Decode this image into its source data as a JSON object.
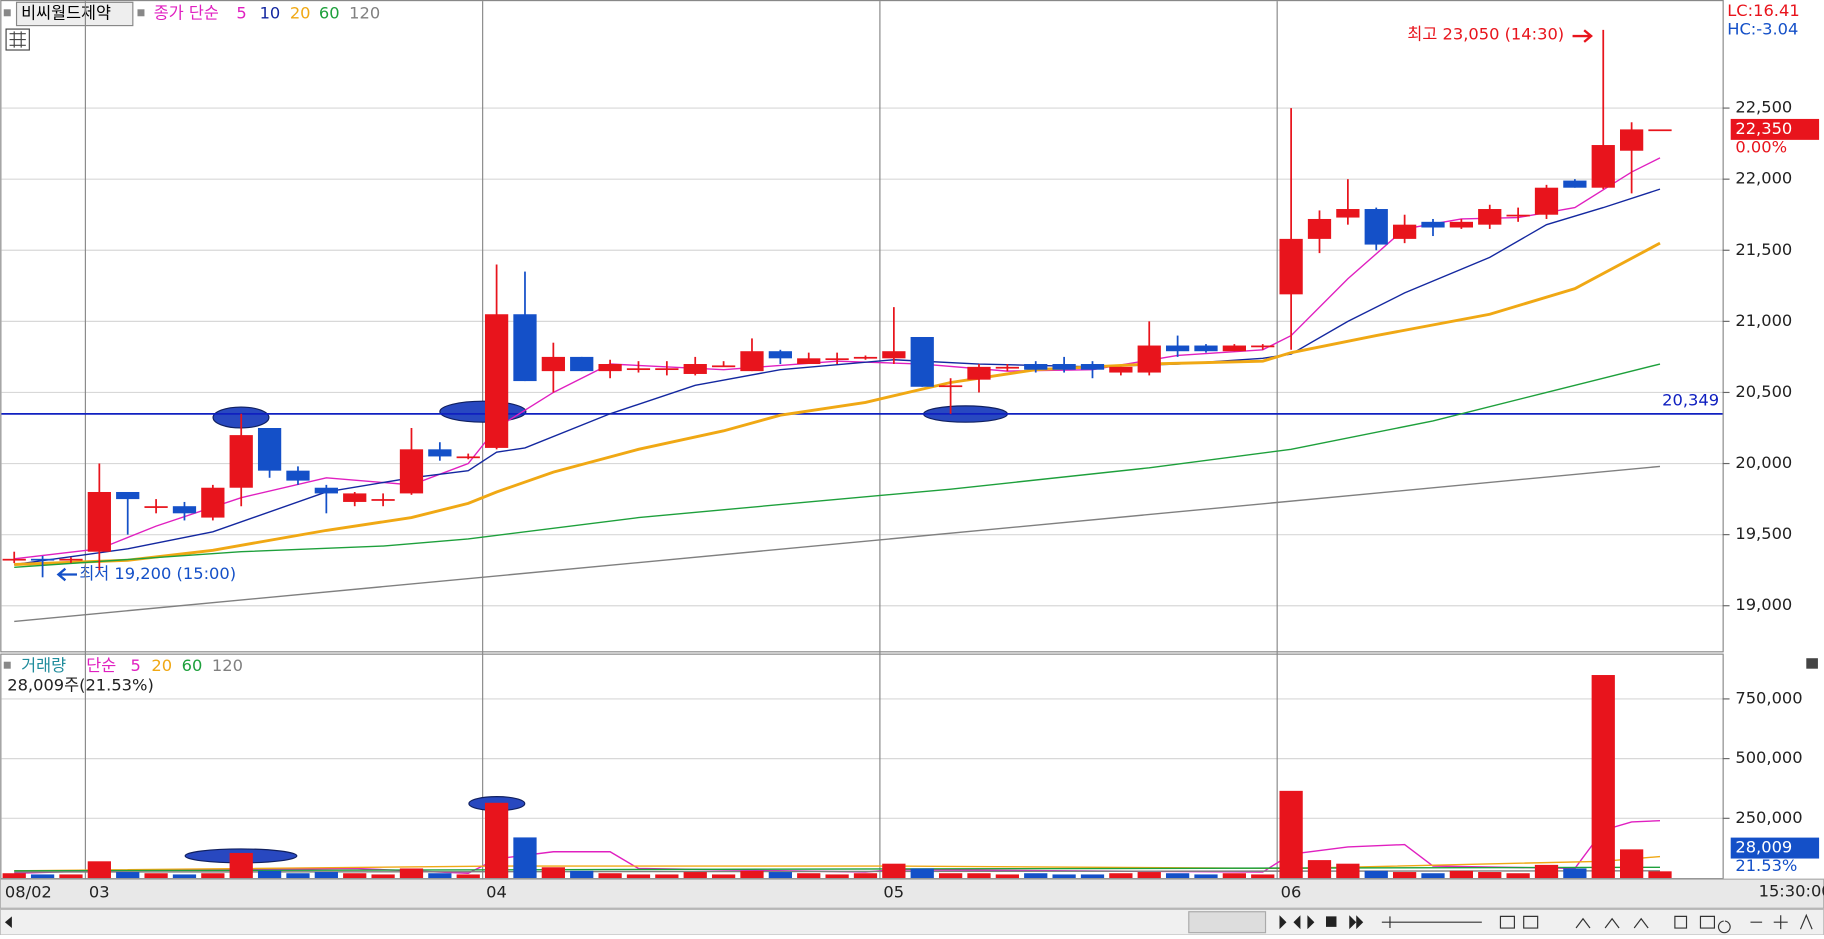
{
  "chart_data": [
    {
      "type": "candlestick",
      "title": "비씨월드제약",
      "legend_label": "종가 단순",
      "up_color": "#e8141c",
      "down_color": "#1450c8",
      "candles": [
        [
          19330,
          19380,
          19300,
          19330
        ],
        [
          19330,
          19350,
          19200,
          19320
        ],
        [
          19320,
          19340,
          19300,
          19330
        ],
        [
          19380,
          20000,
          19250,
          19800
        ],
        [
          19800,
          19800,
          19500,
          19750
        ],
        [
          19700,
          19750,
          19650,
          19700
        ],
        [
          19700,
          19730,
          19600,
          19650
        ],
        [
          19620,
          19850,
          19600,
          19830
        ],
        [
          19830,
          20350,
          19700,
          20200
        ],
        [
          20250,
          20250,
          19900,
          19950
        ],
        [
          19950,
          19980,
          19850,
          19880
        ],
        [
          19830,
          19850,
          19650,
          19790
        ],
        [
          19730,
          19800,
          19700,
          19790
        ],
        [
          19750,
          19790,
          19700,
          19750
        ],
        [
          19790,
          20250,
          19780,
          20100
        ],
        [
          20100,
          20150,
          20020,
          20050
        ],
        [
          20050,
          20070,
          20030,
          20050
        ],
        [
          20110,
          21400,
          20100,
          21050
        ],
        [
          21050,
          21350,
          20580,
          20580
        ],
        [
          20650,
          20850,
          20500,
          20750
        ],
        [
          20750,
          20750,
          20650,
          20650
        ],
        [
          20650,
          20730,
          20600,
          20700
        ],
        [
          20670,
          20720,
          20640,
          20670
        ],
        [
          20670,
          20720,
          20620,
          20670
        ],
        [
          20630,
          20750,
          20620,
          20700
        ],
        [
          20690,
          20720,
          20680,
          20690
        ],
        [
          20650,
          20880,
          20650,
          20790
        ],
        [
          20790,
          20800,
          20700,
          20740
        ],
        [
          20700,
          20780,
          20700,
          20740
        ],
        [
          20740,
          20780,
          20700,
          20740
        ],
        [
          20750,
          20760,
          20730,
          20750
        ],
        [
          20740,
          21100,
          20700,
          20790
        ],
        [
          20890,
          20890,
          20540,
          20540
        ],
        [
          20550,
          20600,
          20350,
          20550
        ],
        [
          20590,
          20700,
          20500,
          20680
        ],
        [
          20680,
          20700,
          20650,
          20680
        ],
        [
          20700,
          20720,
          20640,
          20660
        ],
        [
          20700,
          20750,
          20640,
          20660
        ],
        [
          20700,
          20720,
          20600,
          20660
        ],
        [
          20640,
          20680,
          20620,
          20680
        ],
        [
          20640,
          21000,
          20620,
          20830
        ],
        [
          20830,
          20900,
          20750,
          20790
        ],
        [
          20830,
          20840,
          20780,
          20790
        ],
        [
          20790,
          20840,
          20790,
          20830
        ],
        [
          20830,
          20840,
          20800,
          20830
        ],
        [
          21190,
          22500,
          20800,
          21580
        ],
        [
          21580,
          21780,
          21480,
          21720
        ],
        [
          21730,
          22000,
          21680,
          21790
        ],
        [
          21790,
          21800,
          21500,
          21540
        ],
        [
          21580,
          21750,
          21550,
          21680
        ],
        [
          21700,
          21720,
          21600,
          21660
        ],
        [
          21660,
          21720,
          21650,
          21700
        ],
        [
          21680,
          21820,
          21650,
          21790
        ],
        [
          21750,
          21800,
          21700,
          21750
        ],
        [
          21750,
          21960,
          21720,
          21940
        ],
        [
          21990,
          22000,
          21940,
          21940
        ],
        [
          21940,
          23050,
          21930,
          22240
        ],
        [
          22200,
          22400,
          21900,
          22350
        ],
        [
          22350,
          22350,
          22350,
          22350
        ]
      ],
      "series": [
        {
          "name": "5",
          "color": "#e020c0",
          "x": [
            0,
            3,
            5,
            8,
            11,
            14,
            16,
            17,
            19,
            21,
            25,
            29,
            32,
            35,
            38,
            41,
            44,
            45,
            47,
            49,
            51,
            53,
            55,
            57,
            58
          ],
          "values": [
            19330,
            19400,
            19560,
            19760,
            19900,
            19850,
            20000,
            20250,
            20500,
            20700,
            20660,
            20720,
            20700,
            20650,
            20660,
            20760,
            20800,
            20900,
            21300,
            21650,
            21720,
            21730,
            21800,
            22050,
            22150
          ]
        },
        {
          "name": "10",
          "color": "#1428a0",
          "x": [
            0,
            4,
            7,
            11,
            14,
            16,
            17,
            18,
            21,
            24,
            27,
            31,
            34,
            38,
            41,
            44,
            45,
            47,
            49,
            52,
            54,
            56,
            58
          ],
          "values": [
            19290,
            19400,
            19520,
            19800,
            19900,
            19950,
            20080,
            20110,
            20350,
            20550,
            20660,
            20730,
            20700,
            20680,
            20700,
            20740,
            20770,
            21000,
            21200,
            21450,
            21680,
            21800,
            21930
          ]
        },
        {
          "name": "20",
          "color": "#f0a814",
          "x": [
            0,
            4,
            7,
            11,
            14,
            16,
            17,
            19,
            22,
            25,
            27,
            30,
            33,
            36,
            40,
            44,
            45,
            48,
            52,
            55,
            58
          ],
          "values": [
            19290,
            19320,
            19390,
            19530,
            19620,
            19720,
            19800,
            19940,
            20100,
            20230,
            20340,
            20430,
            20570,
            20660,
            20700,
            20720,
            20780,
            20900,
            21050,
            21230,
            21550
          ]
        },
        {
          "name": "60",
          "color": "#1ea03c",
          "x": [
            0,
            8,
            13,
            16,
            22,
            28,
            33,
            40,
            45,
            50,
            54,
            58
          ],
          "values": [
            19270,
            19380,
            19420,
            19470,
            19620,
            19730,
            19820,
            19970,
            20100,
            20300,
            20500,
            20700
          ]
        },
        {
          "name": "120",
          "color": "#808080",
          "x": [
            0,
            58
          ],
          "values": [
            18890,
            19980
          ]
        }
      ],
      "ylim": [
        18680,
        23260
      ],
      "yticks": [
        {
          "value": 19000,
          "label": "19,000"
        },
        {
          "value": 19500,
          "label": "19,500"
        },
        {
          "value": 20000,
          "label": "20,000"
        },
        {
          "value": 20500,
          "label": "20,500"
        },
        {
          "value": 21000,
          "label": "21,000"
        },
        {
          "value": 21500,
          "label": "21,500"
        },
        {
          "value": 22000,
          "label": "22,000"
        },
        {
          "value": 22500,
          "label": "22,500"
        }
      ],
      "hline": {
        "value": 20349,
        "label": "20,349",
        "color": "#1020c0"
      },
      "annotations": [
        "최고 23,050 (14:30)",
        "최저 19,200 (15:00)"
      ],
      "lc_label": "LC:16.41",
      "hc_label": "HC:-3.04",
      "last_price": {
        "value": 22350,
        "label": "22,350",
        "change": "0.00%"
      },
      "xticks": [
        {
          "value": 0,
          "label": "08/02"
        },
        {
          "value": 3,
          "label": "03"
        },
        {
          "value": 17,
          "label": "04"
        },
        {
          "value": 31,
          "label": "05"
        },
        {
          "value": 45,
          "label": "06"
        }
      ],
      "time_label": "15:30:00"
    },
    {
      "type": "bar",
      "title": "거래량",
      "legend_label": "단순",
      "values": [
        20000,
        15000,
        15000,
        70000,
        25000,
        20000,
        15000,
        20000,
        105000,
        30000,
        20000,
        25000,
        20000,
        15000,
        40000,
        20000,
        15000,
        315000,
        170000,
        45000,
        30000,
        20000,
        15000,
        15000,
        25000,
        15000,
        30000,
        25000,
        20000,
        15000,
        20000,
        60000,
        40000,
        20000,
        20000,
        15000,
        20000,
        15000,
        15000,
        20000,
        25000,
        20000,
        15000,
        20000,
        15000,
        365000,
        75000,
        60000,
        30000,
        25000,
        20000,
        30000,
        25000,
        20000,
        55000,
        40000,
        850000,
        120000,
        28009
      ],
      "series": [
        {
          "name": "5",
          "color": "#e020c0",
          "x": [
            0,
            3,
            7,
            12,
            16,
            17,
            19,
            21,
            22,
            30,
            31,
            44,
            45,
            47,
            49,
            50,
            55,
            56,
            57,
            58
          ],
          "values": [
            20000,
            30000,
            35000,
            40000,
            20000,
            80000,
            110000,
            110000,
            40000,
            25000,
            35000,
            25000,
            100000,
            130000,
            140000,
            50000,
            40000,
            200000,
            235000,
            240000
          ]
        },
        {
          "name": "20",
          "color": "#f0a814",
          "x": [
            0,
            17,
            31,
            45,
            56,
            58
          ],
          "values": [
            30000,
            50000,
            50000,
            40000,
            70000,
            90000
          ]
        },
        {
          "name": "60",
          "color": "#1ea03c",
          "x": [
            0,
            58
          ],
          "values": [
            30000,
            45000
          ]
        },
        {
          "name": "120",
          "color": "#808080",
          "x": [
            0,
            58
          ],
          "values": [
            25000,
            30000
          ]
        }
      ],
      "ylim": [
        0,
        935000
      ],
      "yticks": [
        {
          "value": 250000,
          "label": "250,000"
        },
        {
          "value": 500000,
          "label": "500,000"
        },
        {
          "value": 750000,
          "label": "750,000"
        }
      ],
      "status": "28,009주(21.53%)",
      "last_value": {
        "value": 28009,
        "label": "28,009",
        "change": "21.53%"
      }
    }
  ]
}
